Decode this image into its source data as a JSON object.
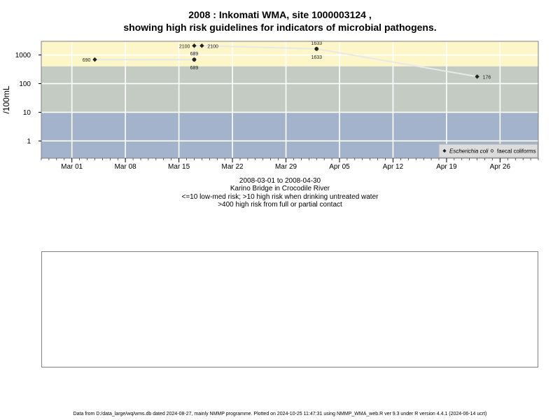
{
  "titles": {
    "line1": "2008 : Inkomati WMA, site 1000003124 ,",
    "line2": "showing high risk guidelines for indicators of microbial pathogens."
  },
  "sublines": [
    "2008-03-01 to 2008-04-30",
    "Karino Bridge in Crocodile River",
    "<=10 low-med risk; >10 high risk when drinking untreated water",
    ">400 high risk from full or partial contact"
  ],
  "footer": "Data from D:/data_large/wq/wms.db dated 2024-08-27, mainly NMMP programme. Plotted on 2024-10-25 11:47:31 using NMMP_WMA_web.R ver 9.3 under R version 4.4.1 (2024-06-14 ucrt)",
  "colors": {
    "band_high": "#fdf6c8",
    "band_mid": "#c3cbc3",
    "band_low": "#a2b3cb",
    "line": "#e8e8e8",
    "marker": "#222222"
  },
  "chart_data": {
    "type": "scatter",
    "ylabel": "/100mL",
    "y_scale": "log",
    "ylim": [
      0.25,
      3000
    ],
    "xlim": [
      "2008-02-26",
      "2008-05-01"
    ],
    "yticks": [
      1,
      10,
      100,
      1000
    ],
    "ytick_labels": [
      "1",
      "10",
      "100",
      "1000"
    ],
    "xticks": [
      "2008-03-01",
      "2008-03-08",
      "2008-03-15",
      "2008-03-22",
      "2008-03-29",
      "2008-04-05",
      "2008-04-12",
      "2008-04-19",
      "2008-04-26"
    ],
    "xtick_labels": [
      "Mar 01",
      "Mar 08",
      "Mar 15",
      "Mar 22",
      "Mar 29",
      "Apr 05",
      "Apr 12",
      "Apr 19",
      "Apr 26"
    ],
    "bands": [
      {
        "from": 400,
        "to": 3000,
        "color": "#fdf6c8"
      },
      {
        "from": 10,
        "to": 400,
        "color": "#c3cbc3"
      },
      {
        "from": 0.25,
        "to": 10,
        "color": "#a2b3cb"
      }
    ],
    "series": [
      {
        "name": "Escherichia coli",
        "marker": "filled-diamond",
        "points": [
          {
            "x": "2008-03-04",
            "y": 690,
            "label": "690",
            "label_pos": "left"
          },
          {
            "x": "2008-03-17",
            "y": 689,
            "label": "689",
            "label_pos": "below"
          },
          {
            "x": "2008-03-17",
            "y": 2100,
            "label": "2100",
            "label_pos": "left"
          },
          {
            "x": "2008-03-18",
            "y": 2100,
            "label": "2100",
            "label_pos": "right"
          },
          {
            "x": "2008-04-02",
            "y": 1633,
            "label": "1633",
            "label_pos": "below"
          },
          {
            "x": "2008-04-23",
            "y": 176,
            "label": "176",
            "label_pos": "right"
          }
        ]
      },
      {
        "name": "faecal coliforms",
        "marker": "open-circle",
        "points": [
          {
            "x": "2008-03-17",
            "y": 689,
            "label": "689",
            "label_pos": "above"
          },
          {
            "x": "2008-04-02",
            "y": 1633,
            "label": "1633",
            "label_pos": "above"
          }
        ]
      }
    ],
    "connecting_line": [
      {
        "x": "2008-03-04",
        "y": 690
      },
      {
        "x": "2008-03-17",
        "y": 689
      },
      {
        "x": "2008-03-17",
        "y": 2100
      },
      {
        "x": "2008-03-18",
        "y": 2100
      },
      {
        "x": "2008-04-02",
        "y": 1633
      },
      {
        "x": "2008-04-23",
        "y": 176
      }
    ],
    "legend": {
      "placement": "bottom-right",
      "entries": [
        "Escherichia coli",
        "faecal coliforms"
      ]
    },
    "grid": true
  }
}
